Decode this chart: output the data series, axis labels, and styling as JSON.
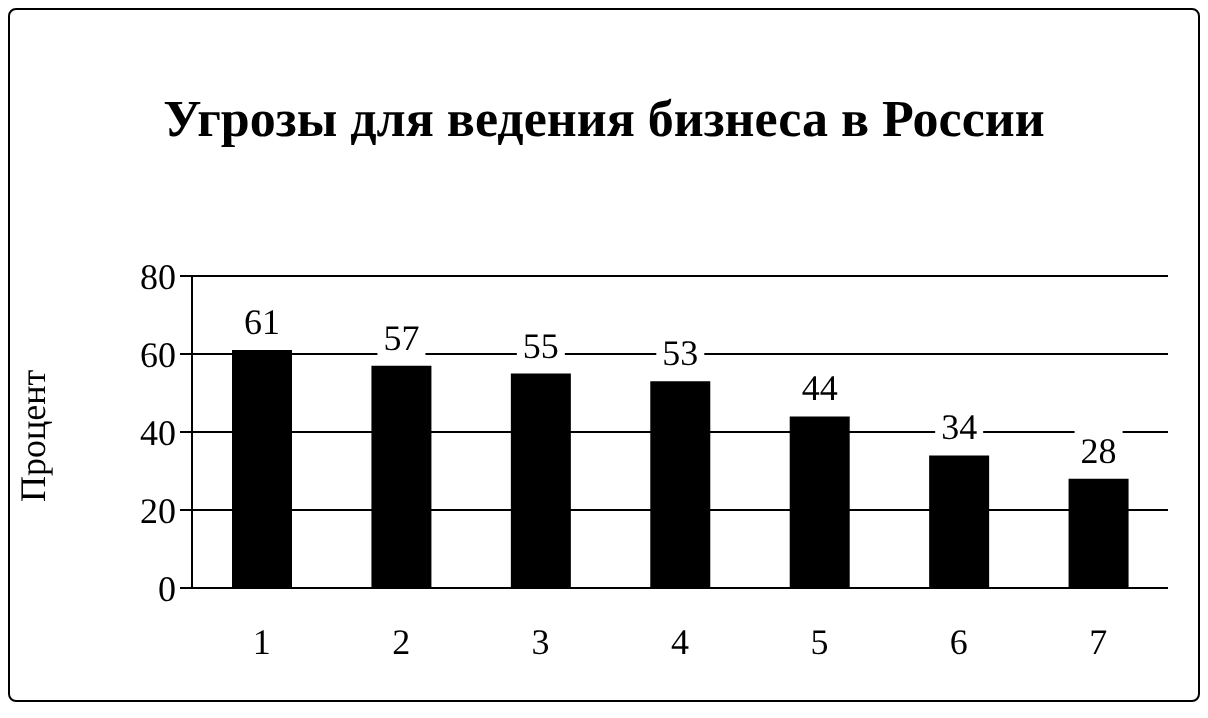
{
  "chart_data": {
    "type": "bar",
    "title": "Угрозы для ведения бизнеса в России",
    "ylabel": "Процент",
    "categories": [
      "1",
      "2",
      "3",
      "4",
      "5",
      "6",
      "7"
    ],
    "values": [
      61,
      57,
      55,
      53,
      44,
      34,
      28
    ],
    "color": "#000000",
    "ylim": [
      0,
      80
    ],
    "yticks": [
      0,
      20,
      40,
      60,
      80
    ],
    "grid": "y",
    "data_labels": true
  }
}
